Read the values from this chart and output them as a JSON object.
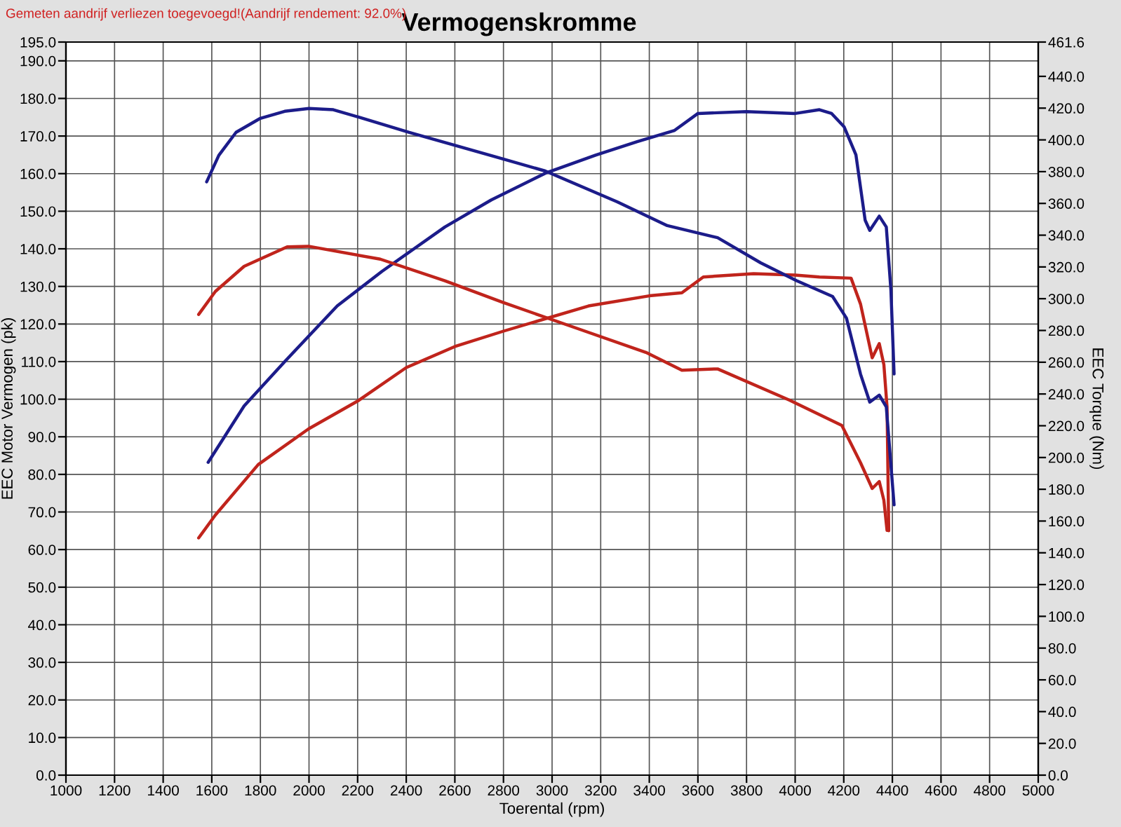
{
  "chart_data": {
    "type": "line",
    "title": "Vermogenskromme",
    "xlabel": "Toerental (rpm)",
    "ylabel": "EEC Motor Vermogen (pk)",
    "y2label": "EEC Torque (Nm)",
    "annotations": [
      "Gemeten aandrijf verliezen toegevoegd!(Aandrijf rendement: 92.0%)"
    ],
    "xlim": [
      1000,
      5000
    ],
    "xticks": [
      1000,
      1200,
      1400,
      1600,
      1800,
      2000,
      2200,
      2400,
      2600,
      2800,
      3000,
      3200,
      3400,
      3600,
      3800,
      4000,
      4200,
      4400,
      4600,
      4800,
      5000
    ],
    "ylim": [
      0,
      195
    ],
    "yticks": [
      {
        "value": 0,
        "label": "0.0"
      },
      {
        "value": 10,
        "label": "10.0"
      },
      {
        "value": 20,
        "label": "20.0"
      },
      {
        "value": 30,
        "label": "30.0"
      },
      {
        "value": 40,
        "label": "40.0"
      },
      {
        "value": 50,
        "label": "50.0"
      },
      {
        "value": 60,
        "label": "60.0"
      },
      {
        "value": 70,
        "label": "70.0"
      },
      {
        "value": 80,
        "label": "80.0"
      },
      {
        "value": 90,
        "label": "90.0"
      },
      {
        "value": 100,
        "label": "100.0"
      },
      {
        "value": 110,
        "label": "110.0"
      },
      {
        "value": 120,
        "label": "120.0"
      },
      {
        "value": 130,
        "label": "130.0"
      },
      {
        "value": 140,
        "label": "140.0"
      },
      {
        "value": 150,
        "label": "150.0"
      },
      {
        "value": 160,
        "label": "160.0"
      },
      {
        "value": 170,
        "label": "170.0"
      },
      {
        "value": 180,
        "label": "180.0"
      },
      {
        "value": 190,
        "label": "190.0"
      },
      {
        "value": 195,
        "label": "195.0"
      }
    ],
    "y2lim": [
      0,
      461.6
    ],
    "y2ticks": [
      {
        "value": 0,
        "label": "0.0"
      },
      {
        "value": 20,
        "label": "20.0"
      },
      {
        "value": 40,
        "label": "40.0"
      },
      {
        "value": 60,
        "label": "60.0"
      },
      {
        "value": 80,
        "label": "80.0"
      },
      {
        "value": 100,
        "label": "100.0"
      },
      {
        "value": 120,
        "label": "120.0"
      },
      {
        "value": 140,
        "label": "140.0"
      },
      {
        "value": 160,
        "label": "160.0"
      },
      {
        "value": 180,
        "label": "180.0"
      },
      {
        "value": 200,
        "label": "200.0"
      },
      {
        "value": 220,
        "label": "220.0"
      },
      {
        "value": 240,
        "label": "240.0"
      },
      {
        "value": 260,
        "label": "260.0"
      },
      {
        "value": 280,
        "label": "280.0"
      },
      {
        "value": 300,
        "label": "300.0"
      },
      {
        "value": 320,
        "label": "320.0"
      },
      {
        "value": 340,
        "label": "340.0"
      },
      {
        "value": 360,
        "label": "360.0"
      },
      {
        "value": 380,
        "label": "380.0"
      },
      {
        "value": 400,
        "label": "400.0"
      },
      {
        "value": 420,
        "label": "420.0"
      },
      {
        "value": 440,
        "label": "440.0"
      },
      {
        "value": 461.6,
        "label": "461.6"
      }
    ],
    "grid": true,
    "line_style": "solid",
    "marker": "none",
    "series": [
      {
        "color": "#1c1c8a",
        "x": [
          1585,
          1733,
          1900,
          2116,
          2300,
          2559,
          2750,
          2972,
          3179,
          3350,
          3504,
          3600,
          3800,
          4000,
          4100,
          4150,
          4201,
          4250,
          4288,
          4307,
          4346,
          4375,
          4394,
          4407
        ],
        "values": [
          83.2,
          98.2,
          110,
          124.8,
          134,
          145.8,
          153,
          160.1,
          164.9,
          168.5,
          171.5,
          176,
          176.5,
          176,
          177,
          176,
          172.5,
          165,
          147.6,
          144.9,
          148.7,
          145.8,
          129,
          106.7
        ]
      },
      {
        "color": "#1c1c8a",
        "axis": "y2",
        "x": [
          1579,
          1629,
          1700,
          1800,
          1900,
          2000,
          2100,
          2200,
          2412,
          2766,
          2972,
          3268,
          3474,
          3681,
          3858,
          4006,
          4154,
          4211,
          4269,
          4307,
          4346,
          4375,
          4407
        ],
        "values": [
          373.6,
          390.3,
          404.8,
          413.6,
          418,
          419.8,
          419,
          414.5,
          404.7,
          389.4,
          380.4,
          361,
          346,
          338.4,
          322.6,
          311.3,
          301.4,
          287.8,
          252.5,
          234.9,
          239.3,
          231.9,
          170.2
        ]
      },
      {
        "color": "#c0241c",
        "x": [
          1546,
          1615,
          1791,
          1998,
          2205,
          2400,
          2600,
          2800,
          3150,
          3400,
          3534,
          3622,
          3829,
          4000,
          4100,
          4230,
          4269,
          4317,
          4346,
          4365,
          4378,
          4385
        ],
        "values": [
          63.1,
          69.2,
          82.6,
          92.1,
          99.7,
          108.4,
          114,
          118.1,
          124.8,
          127.5,
          128.3,
          132.5,
          133.4,
          133,
          132.5,
          132.2,
          125.3,
          111,
          114.8,
          109.2,
          98,
          65
        ]
      },
      {
        "color": "#c0241c",
        "axis": "y2",
        "x": [
          1546,
          1615,
          1733,
          1910,
          1998,
          2293,
          2559,
          2795,
          3090,
          3386,
          3534,
          3681,
          3977,
          4192,
          4269,
          4317,
          4346,
          4365,
          4378
        ],
        "values": [
          290.1,
          304.6,
          320.4,
          332.6,
          333,
          324.9,
          311.3,
          297.8,
          282,
          266.2,
          255,
          255.8,
          236.1,
          220.2,
          196.7,
          180.5,
          184.9,
          173.1,
          154.1
        ]
      }
    ]
  }
}
